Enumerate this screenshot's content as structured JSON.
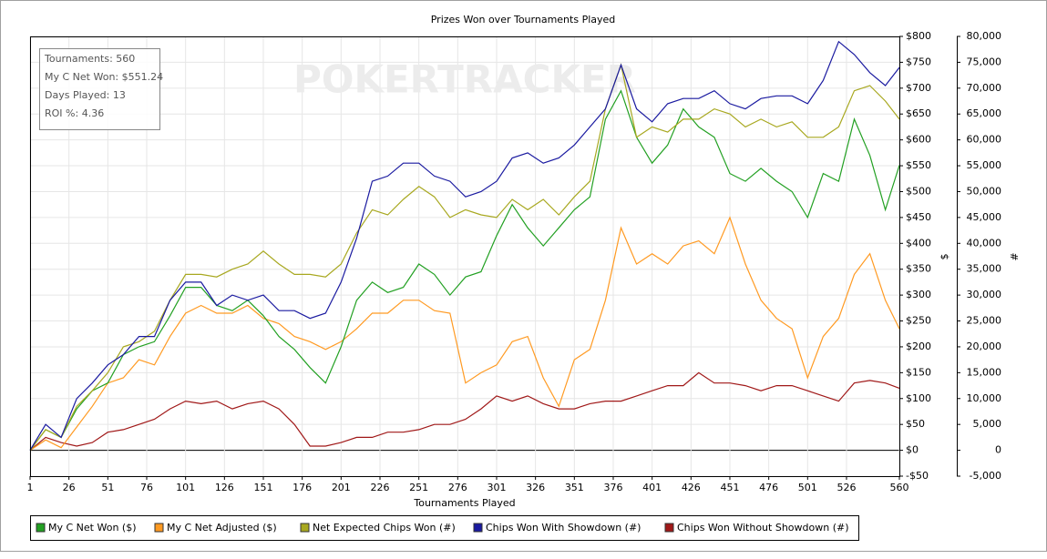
{
  "chart_data": {
    "type": "line",
    "title": "Prizes Won over Tournaments Played",
    "watermark": "POKERTRACKER",
    "info": [
      "Tournaments: 560",
      "My C Net Won: $551.24",
      "Days Played: 13",
      "ROI %: 4.36"
    ],
    "x_label": "Tournaments Played",
    "y_label": "$",
    "y2_label": "#",
    "grid": true,
    "legend": "bottom",
    "xlim": [
      1,
      560
    ],
    "xticks": [
      1,
      26,
      51,
      76,
      101,
      126,
      151,
      176,
      201,
      226,
      251,
      276,
      301,
      326,
      351,
      376,
      401,
      426,
      451,
      476,
      501,
      526,
      560
    ],
    "ylim": [
      -50,
      800
    ],
    "yticks": [
      {
        "value": -50,
        "label": "-$50"
      },
      {
        "value": 0,
        "label": "$0"
      },
      {
        "value": 50,
        "label": "$50"
      },
      {
        "value": 100,
        "label": "$100"
      },
      {
        "value": 150,
        "label": "$150"
      },
      {
        "value": 200,
        "label": "$200"
      },
      {
        "value": 250,
        "label": "$250"
      },
      {
        "value": 300,
        "label": "$300"
      },
      {
        "value": 350,
        "label": "$350"
      },
      {
        "value": 400,
        "label": "$400"
      },
      {
        "value": 450,
        "label": "$450"
      },
      {
        "value": 500,
        "label": "$500"
      },
      {
        "value": 550,
        "label": "$550"
      },
      {
        "value": 600,
        "label": "$600"
      },
      {
        "value": 650,
        "label": "$650"
      },
      {
        "value": 700,
        "label": "$700"
      },
      {
        "value": 750,
        "label": "$750"
      },
      {
        "value": 800,
        "label": "$800"
      }
    ],
    "y2lim": [
      -5000,
      80000
    ],
    "y2ticks": [
      {
        "value": -5000,
        "label": "-5,000"
      },
      0,
      {
        "value": 5000,
        "label": "5,000"
      },
      {
        "value": 10000,
        "label": "10,000"
      },
      {
        "value": 15000,
        "label": "15,000"
      },
      {
        "value": 20000,
        "label": "20,000"
      },
      {
        "value": 25000,
        "label": "25,000"
      },
      {
        "value": 30000,
        "label": "30,000"
      },
      {
        "value": 35000,
        "label": "35,000"
      },
      {
        "value": 40000,
        "label": "40,000"
      },
      {
        "value": 45000,
        "label": "45,000"
      },
      {
        "value": 50000,
        "label": "50,000"
      },
      {
        "value": 55000,
        "label": "55,000"
      },
      {
        "value": 60000,
        "label": "60,000"
      },
      {
        "value": 65000,
        "label": "65,000"
      },
      {
        "value": 70000,
        "label": "70,000"
      },
      {
        "value": 75000,
        "label": "75,000"
      },
      {
        "value": 80000,
        "label": "80,000"
      }
    ],
    "x": [
      1,
      11,
      21,
      31,
      41,
      51,
      61,
      71,
      81,
      91,
      101,
      111,
      121,
      131,
      141,
      151,
      161,
      171,
      181,
      191,
      201,
      211,
      221,
      231,
      241,
      251,
      261,
      271,
      281,
      291,
      301,
      311,
      321,
      331,
      341,
      351,
      361,
      371,
      381,
      391,
      401,
      411,
      421,
      431,
      441,
      451,
      461,
      471,
      481,
      491,
      501,
      511,
      521,
      531,
      541,
      551,
      560
    ],
    "series": [
      {
        "name": "My C Net Won ($)",
        "color": "#22a022",
        "values": [
          0,
          40,
          25,
          80,
          115,
          130,
          185,
          200,
          210,
          260,
          315,
          315,
          280,
          270,
          290,
          260,
          220,
          195,
          160,
          130,
          200,
          290,
          325,
          305,
          315,
          360,
          340,
          300,
          335,
          345,
          415,
          475,
          430,
          395,
          430,
          465,
          490,
          640,
          695,
          605,
          555,
          590,
          660,
          625,
          605,
          535,
          520,
          545,
          520,
          500,
          450,
          535,
          520,
          640,
          570,
          465,
          551
        ]
      },
      {
        "name": "My C Net Adjusted ($)",
        "color": "#ff9a22",
        "values": [
          0,
          20,
          5,
          45,
          85,
          130,
          140,
          175,
          165,
          220,
          265,
          280,
          265,
          265,
          280,
          255,
          245,
          220,
          210,
          195,
          210,
          235,
          265,
          265,
          290,
          290,
          270,
          265,
          130,
          150,
          165,
          210,
          220,
          140,
          85,
          175,
          195,
          290,
          430,
          360,
          380,
          360,
          395,
          405,
          380,
          450,
          360,
          290,
          255,
          235,
          140,
          220,
          255,
          340,
          380,
          290,
          235
        ]
      },
      {
        "name": "Net Expected Chips Won (#)",
        "color": "#a8a820",
        "axis": "y2",
        "values": [
          0,
          4000,
          2500,
          8500,
          11500,
          15000,
          20000,
          21000,
          23000,
          29000,
          34000,
          34000,
          33500,
          35000,
          36000,
          38500,
          36000,
          34000,
          34000,
          33500,
          36000,
          42000,
          46500,
          45500,
          48500,
          51000,
          49000,
          45000,
          46500,
          45500,
          45000,
          48500,
          46500,
          48500,
          45500,
          49000,
          52000,
          66000,
          74500,
          60500,
          62500,
          61500,
          64000,
          64000,
          66000,
          65000,
          62500,
          64000,
          62500,
          63500,
          60500,
          60500,
          62500,
          69500,
          70500,
          67500,
          64000
        ]
      },
      {
        "name": "Chips Won With Showdown (#)",
        "color": "#1a1aa0",
        "axis": "y2",
        "values": [
          0,
          5000,
          2500,
          10000,
          13000,
          16500,
          18500,
          22000,
          22000,
          29000,
          32500,
          32500,
          28000,
          30000,
          29000,
          30000,
          27000,
          27000,
          25500,
          26500,
          32500,
          41000,
          52000,
          53000,
          55500,
          55500,
          53000,
          52000,
          49000,
          50000,
          52000,
          56500,
          57500,
          55500,
          56500,
          59000,
          62500,
          66000,
          74500,
          66000,
          63500,
          67000,
          68000,
          68000,
          69500,
          67000,
          66000,
          68000,
          68500,
          68500,
          67000,
          71500,
          79000,
          76500,
          73000,
          70500,
          74000
        ]
      },
      {
        "name": "Chips Won Without Showdown (#)",
        "color": "#a01818",
        "axis": "y2",
        "values": [
          0,
          2500,
          1500,
          800,
          1500,
          3500,
          4000,
          5000,
          6000,
          8000,
          9500,
          9000,
          9500,
          8000,
          9000,
          9500,
          8000,
          5000,
          800,
          800,
          1500,
          2500,
          2500,
          3500,
          3500,
          4000,
          5000,
          5000,
          6000,
          8000,
          10500,
          9500,
          10500,
          9000,
          8000,
          8000,
          9000,
          9500,
          9500,
          10500,
          11500,
          12500,
          12500,
          15000,
          13000,
          13000,
          12500,
          11500,
          12500,
          12500,
          11500,
          10500,
          9500,
          13000,
          13500,
          13000,
          12000
        ]
      }
    ]
  }
}
